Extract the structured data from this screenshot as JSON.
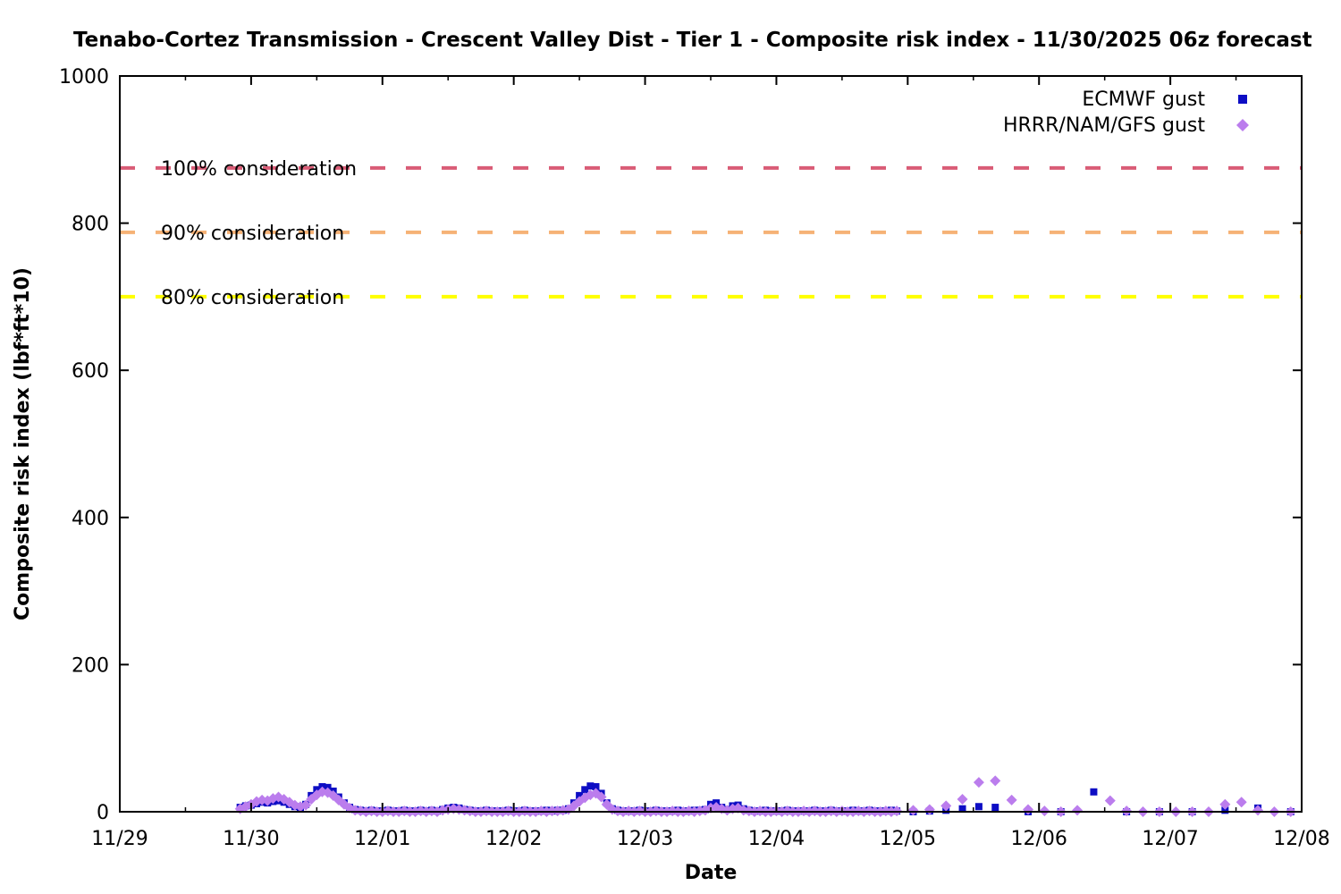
{
  "chart_data": {
    "type": "scatter",
    "title": "Tenabo-Cortez Transmission - Crescent Valley Dist - Tier 1 - Composite risk index - 11/30/2025 06z forecast",
    "xlabel": "Date",
    "ylabel": "Composite risk index (lbf*ft*10)",
    "x_axis": {
      "min_day": 0,
      "max_day": 9,
      "tick_labels": [
        "11/29",
        "11/30",
        "12/01",
        "12/02",
        "12/03",
        "12/04",
        "12/05",
        "12/06",
        "12/07",
        "12/08"
      ],
      "minor_tick_step_days": 0.5
    },
    "y_axis": {
      "min": 0,
      "max": 1000,
      "ticks": [
        0,
        200,
        400,
        600,
        800,
        1000
      ]
    },
    "grid": "off",
    "legend_position": "top-right-inside",
    "thresholds": [
      {
        "label": "100% consideration",
        "value": 875,
        "color": "#d95c76"
      },
      {
        "label": "90% consideration",
        "value": 787.5,
        "color": "#f6b276"
      },
      {
        "label": "80% consideration",
        "value": 700,
        "color": "#ffff00"
      }
    ],
    "series": [
      {
        "name": "ECMWF gust",
        "marker": "square",
        "color": "#0d0dc4",
        "hourly": {
          "t0_days": 0.9167,
          "step_days": 0.0416667,
          "values": [
            6,
            8,
            9,
            11,
            13,
            12,
            14,
            15,
            13,
            10,
            7,
            5,
            10,
            22,
            30,
            34,
            33,
            28,
            20,
            12,
            6,
            3,
            2,
            1,
            2,
            1,
            1,
            2,
            1,
            1,
            2,
            1,
            1,
            2,
            1,
            2,
            1,
            3,
            5,
            6,
            5,
            3,
            2,
            1,
            1,
            2,
            1,
            1,
            1,
            2,
            1,
            1,
            2,
            1,
            1,
            1,
            2,
            1,
            2,
            2,
            4,
            12,
            22,
            30,
            35,
            34,
            25,
            12,
            4,
            2,
            1,
            1,
            1,
            2,
            1,
            1,
            2,
            1,
            1,
            1,
            2,
            1,
            1,
            2,
            2,
            3,
            10,
            12,
            6,
            3,
            8,
            9,
            4,
            2,
            1,
            1,
            2,
            1,
            1,
            1,
            2,
            1,
            1,
            1,
            1,
            2,
            1,
            1,
            2,
            1,
            1,
            1,
            2,
            1,
            1,
            2,
            1,
            1,
            1,
            2,
            1
          ]
        },
        "sparse": {
          "t0_days": 6.0417,
          "step_days": 0.125,
          "values": [
            0,
            1,
            2,
            4,
            7,
            6,
            null,
            0,
            null,
            0,
            null,
            27,
            null,
            0,
            null,
            0,
            null,
            0,
            null,
            2,
            null,
            5,
            null,
            0
          ]
        }
      },
      {
        "name": "HRRR/NAM/GFS gust",
        "marker": "diamond",
        "color": "#bb7ded",
        "hourly": {
          "t0_days": 0.9167,
          "step_days": 0.0416667,
          "values": [
            4,
            7,
            10,
            14,
            16,
            15,
            18,
            20,
            17,
            13,
            9,
            7,
            9,
            17,
            23,
            27,
            26,
            22,
            16,
            10,
            5,
            2,
            1,
            0,
            1,
            0,
            0,
            1,
            0,
            0,
            1,
            0,
            0,
            1,
            0,
            1,
            0,
            2,
            3,
            4,
            3,
            2,
            1,
            0,
            0,
            1,
            0,
            0,
            0,
            1,
            0,
            0,
            1,
            0,
            0,
            1,
            0,
            1,
            1,
            2,
            3,
            8,
            14,
            19,
            23,
            25,
            20,
            10,
            3,
            1,
            0,
            1,
            0,
            1,
            0,
            0,
            1,
            0,
            0,
            1,
            0,
            0,
            1,
            0,
            1,
            2,
            5,
            6,
            4,
            2,
            4,
            5,
            2,
            1,
            0,
            1,
            0,
            0,
            1,
            0,
            1,
            0,
            0,
            1,
            0,
            1,
            0,
            0,
            1,
            0,
            1,
            0,
            0,
            1,
            0,
            1,
            0,
            0,
            1,
            0,
            1
          ]
        },
        "sparse": {
          "t0_days": 6.0417,
          "step_days": 0.125,
          "values": [
            2,
            3,
            8,
            17,
            40,
            42,
            16,
            3,
            1,
            0,
            2,
            null,
            15,
            1,
            0,
            0,
            0,
            0,
            0,
            10,
            13,
            2,
            0,
            0
          ]
        }
      }
    ],
    "axis_color": "#000000",
    "text_color": "#000000"
  }
}
